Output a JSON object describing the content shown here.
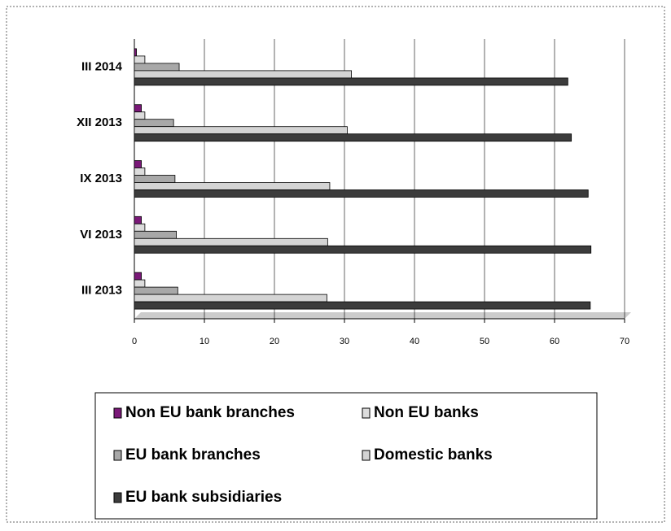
{
  "chart_data": {
    "type": "bar",
    "orientation": "horizontal",
    "categories": [
      "III 2013",
      "VI 2013",
      "IX 2013",
      "XII 2013",
      "III 2014"
    ],
    "series": [
      {
        "name": "Non EU bank branches",
        "color": "#7a1878",
        "values": [
          1.0,
          1.0,
          1.0,
          1.0,
          0.3
        ]
      },
      {
        "name": "Non EU banks",
        "color": "#dcdcdc",
        "values": [
          1.5,
          1.5,
          1.5,
          1.5,
          1.5
        ]
      },
      {
        "name": "EU bank branches",
        "color": "#a8a8a8",
        "values": [
          6.2,
          6.0,
          5.8,
          5.6,
          6.4
        ]
      },
      {
        "name": "Domestic banks",
        "color": "#d4d4d4",
        "values": [
          27.5,
          27.6,
          27.9,
          30.4,
          31.0
        ]
      },
      {
        "name": "EU bank subsidiaries",
        "color": "#3c3c3c",
        "values": [
          65.1,
          65.2,
          64.8,
          62.4,
          61.9
        ]
      }
    ],
    "xlim": [
      0,
      70
    ],
    "xticks": [
      0,
      10,
      20,
      30,
      40,
      50,
      60,
      70
    ],
    "grid": true,
    "legend": "bottom"
  }
}
